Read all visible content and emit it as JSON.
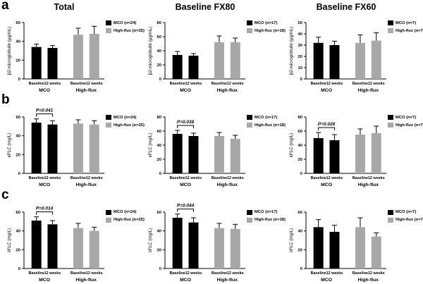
{
  "figure": {
    "background": "#ffffff",
    "colors": {
      "mco": "#000000",
      "highflux": "#a8a8a8",
      "axis": "#000000",
      "text": "#000000"
    }
  },
  "chart_data": [
    {
      "id": "a-total",
      "type": "bar",
      "panel_letter": "a",
      "title": "Total",
      "ylabel": "β2-microglobulin (µg/mL)",
      "ylim": [
        0,
        60
      ],
      "yticks": [
        0,
        20,
        40,
        60
      ],
      "categories": [
        "Baseline",
        "12 weeks"
      ],
      "group_labels": [
        "MCO",
        "High-flux"
      ],
      "series": [
        {
          "name": "MCO",
          "values": [
            34,
            33
          ],
          "errors": [
            3,
            2.5
          ],
          "color_key": "mco"
        },
        {
          "name": "High-flux",
          "values": [
            47,
            48
          ],
          "errors": [
            7,
            8
          ],
          "color_key": "highflux"
        }
      ],
      "legend": [
        {
          "label": "MCO (n=24)",
          "color_key": "mco"
        },
        {
          "label": "High-flux (n=25)",
          "color_key": "highflux"
        }
      ],
      "p_value": null
    },
    {
      "id": "a-fx80",
      "type": "bar",
      "panel_letter": null,
      "title": "Baseline FX80",
      "ylabel": "β2-microglobulin (µg/mL)",
      "ylim": [
        0,
        80
      ],
      "yticks": [
        0,
        20,
        40,
        60,
        80
      ],
      "categories": [
        "Baseline",
        "12 weeks"
      ],
      "group_labels": [
        "MCO",
        "High-flux"
      ],
      "series": [
        {
          "name": "MCO",
          "values": [
            34,
            33
          ],
          "errors": [
            5,
            3
          ],
          "color_key": "mco"
        },
        {
          "name": "High-flux",
          "values": [
            52,
            52
          ],
          "errors": [
            9,
            6
          ],
          "color_key": "highflux"
        }
      ],
      "legend": [
        {
          "label": "MCO (n=17)",
          "color_key": "mco"
        },
        {
          "label": "High-flux (n=18)",
          "color_key": "highflux"
        }
      ],
      "p_value": null
    },
    {
      "id": "a-fx60",
      "type": "bar",
      "panel_letter": null,
      "title": "Baseline FX60",
      "ylabel": "β2-microglobulin (µg/mL)",
      "ylim": [
        0,
        50
      ],
      "yticks": [
        0,
        10,
        20,
        30,
        40,
        50
      ],
      "categories": [
        "Baseline",
        "12 weeks"
      ],
      "group_labels": [
        "MCO",
        "High-flux"
      ],
      "series": [
        {
          "name": "MCO",
          "values": [
            32,
            30
          ],
          "errors": [
            5,
            3.5
          ],
          "color_key": "mco"
        },
        {
          "name": "High-flux",
          "values": [
            32,
            34
          ],
          "errors": [
            7,
            7
          ],
          "color_key": "highflux"
        }
      ],
      "legend": [
        {
          "label": "MCO (n=7)",
          "color_key": "mco"
        },
        {
          "label": "High-flux (n=7)",
          "color_key": "highflux"
        }
      ],
      "p_value": null
    },
    {
      "id": "b-total",
      "type": "bar",
      "panel_letter": "b",
      "title": null,
      "ylabel": "κFLC (mg/L)",
      "ylim": [
        0,
        60
      ],
      "yticks": [
        0,
        20,
        40,
        60
      ],
      "categories": [
        "Baseline",
        "12 weeks"
      ],
      "group_labels": [
        "MCO",
        "High-flux"
      ],
      "series": [
        {
          "name": "MCO",
          "values": [
            54,
            52
          ],
          "errors": [
            4,
            4
          ],
          "color_key": "mco"
        },
        {
          "name": "High-flux",
          "values": [
            53,
            52
          ],
          "errors": [
            4,
            4
          ],
          "color_key": "highflux"
        }
      ],
      "legend": [
        {
          "label": "MCO (n=24)",
          "color_key": "mco"
        },
        {
          "label": "High-flux (n=25)",
          "color_key": "highflux"
        }
      ],
      "p_value": "P=0.041"
    },
    {
      "id": "b-fx80",
      "type": "bar",
      "panel_letter": null,
      "title": null,
      "ylabel": "κFLC (mg/L)",
      "ylim": [
        0,
        80
      ],
      "yticks": [
        0,
        20,
        40,
        60,
        80
      ],
      "categories": [
        "Baseline",
        "12 weeks"
      ],
      "group_labels": [
        "MCO",
        "High-flux"
      ],
      "series": [
        {
          "name": "MCO",
          "values": [
            56,
            53
          ],
          "errors": [
            5,
            4
          ],
          "color_key": "mco"
        },
        {
          "name": "High-flux",
          "values": [
            53,
            49
          ],
          "errors": [
            5,
            5
          ],
          "color_key": "highflux"
        }
      ],
      "legend": [
        {
          "label": "MCO (n=17)",
          "color_key": "mco"
        },
        {
          "label": "High-flux (n=18)",
          "color_key": "highflux"
        }
      ],
      "p_value": "P=0.038"
    },
    {
      "id": "b-fx60",
      "type": "bar",
      "panel_letter": null,
      "title": null,
      "ylabel": "κFLC (mg/L)",
      "ylim": [
        0,
        80
      ],
      "yticks": [
        0,
        20,
        40,
        60,
        80
      ],
      "categories": [
        "Baseline",
        "12 weeks"
      ],
      "group_labels": [
        "MCO",
        "High-flux"
      ],
      "series": [
        {
          "name": "MCO",
          "values": [
            50,
            47
          ],
          "errors": [
            8,
            8
          ],
          "color_key": "mco"
        },
        {
          "name": "High-flux",
          "values": [
            55,
            57
          ],
          "errors": [
            8,
            10
          ],
          "color_key": "highflux"
        }
      ],
      "legend": [
        {
          "label": "MCO (n=7)",
          "color_key": "mco"
        },
        {
          "label": "High-flux (n=7)",
          "color_key": "highflux"
        }
      ],
      "p_value": "P=0.028"
    },
    {
      "id": "c-total",
      "type": "bar",
      "panel_letter": "c",
      "title": null,
      "ylabel": "λFLC (mg/L)",
      "ylim": [
        0,
        60
      ],
      "yticks": [
        0,
        20,
        40,
        60
      ],
      "categories": [
        "Baseline",
        "12 weeks"
      ],
      "group_labels": [
        "MCO",
        "High-flux"
      ],
      "series": [
        {
          "name": "MCO",
          "values": [
            51,
            47
          ],
          "errors": [
            4,
            4
          ],
          "color_key": "mco"
        },
        {
          "name": "High-flux",
          "values": [
            43,
            40
          ],
          "errors": [
            5,
            4
          ],
          "color_key": "highflux"
        }
      ],
      "legend": [
        {
          "label": "MCO (n=24)",
          "color_key": "mco"
        },
        {
          "label": "High-flux (n=25)",
          "color_key": "highflux"
        }
      ],
      "p_value": "P=0.014"
    },
    {
      "id": "c-fx80",
      "type": "bar",
      "panel_letter": null,
      "title": null,
      "ylabel": "λFLC (mg/L)",
      "ylim": [
        0,
        60
      ],
      "yticks": [
        0,
        20,
        40,
        60
      ],
      "categories": [
        "Baseline",
        "12 weeks"
      ],
      "group_labels": [
        "MCO",
        "High-flux"
      ],
      "series": [
        {
          "name": "MCO",
          "values": [
            54,
            49
          ],
          "errors": [
            4,
            5
          ],
          "color_key": "mco"
        },
        {
          "name": "High-flux",
          "values": [
            43,
            42
          ],
          "errors": [
            5,
            5
          ],
          "color_key": "highflux"
        }
      ],
      "legend": [
        {
          "label": "MCO (n=17)",
          "color_key": "mco"
        },
        {
          "label": "High-flux (n=18)",
          "color_key": "highflux"
        }
      ],
      "p_value": "P=0.044"
    },
    {
      "id": "c-fx60",
      "type": "bar",
      "panel_letter": null,
      "title": null,
      "ylabel": "λFLC (mg/L)",
      "ylim": [
        0,
        60
      ],
      "yticks": [
        0,
        20,
        40,
        60
      ],
      "categories": [
        "Baseline",
        "12 weeks"
      ],
      "group_labels": [
        "MCO",
        "High-flux"
      ],
      "series": [
        {
          "name": "MCO",
          "values": [
            44,
            39
          ],
          "errors": [
            8,
            7
          ],
          "color_key": "mco"
        },
        {
          "name": "High-flux",
          "values": [
            44,
            34
          ],
          "errors": [
            10,
            4
          ],
          "color_key": "highflux"
        }
      ],
      "legend": [
        {
          "label": "MCO (n=7)",
          "color_key": "mco"
        },
        {
          "label": "High-flux (n=7)",
          "color_key": "highflux"
        }
      ],
      "p_value": null
    }
  ]
}
